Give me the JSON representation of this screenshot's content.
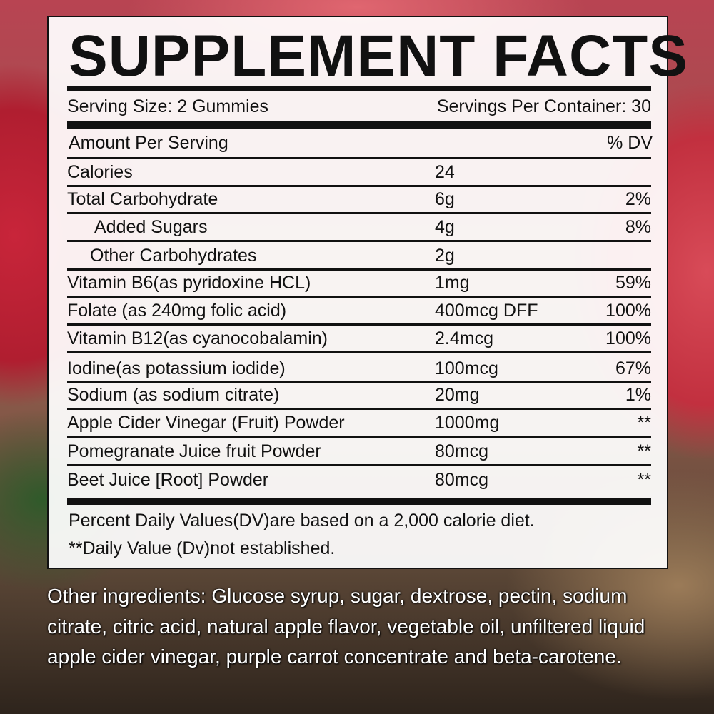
{
  "label": {
    "title": "SUPPLEMENT FACTS",
    "serving_size": "Serving Size: 2 Gummies",
    "servings_per_container": "Servings Per Container: 30",
    "amount_header": "Amount Per Serving",
    "dv_header": "% DV",
    "rows": [
      {
        "name": "Calories",
        "amount": "24",
        "dv": ""
      },
      {
        "name": "Total Carbohydrate",
        "amount": "6g",
        "dv": "2%"
      },
      {
        "name": "Added Sugars",
        "amount": "4g",
        "dv": "8%"
      },
      {
        "name": "Other Carbohydrates",
        "amount": "2g",
        "dv": ""
      },
      {
        "name": "Vitamin B6(as pyridoxine HCL)",
        "amount": "1mg",
        "dv": "59%"
      },
      {
        "name": "Folate (as 240mg folic acid)",
        "amount": "400mcg DFF",
        "dv": "100%"
      },
      {
        "name": "Vitamin B12(as cyanocobalamin)",
        "amount": "2.4mcg",
        "dv": "100%"
      },
      {
        "name": "Iodine(as potassium iodide)",
        "amount": "100mcg",
        "dv": "67%"
      },
      {
        "name": "Sodium (as sodium citrate)",
        "amount": "20mg",
        "dv": "1%"
      },
      {
        "name": "Apple Cider Vinegar (Fruit) Powder",
        "amount": "1000mg",
        "dv": "**"
      },
      {
        "name": "Pomegranate Juice  fruit Powder",
        "amount": "80mcg",
        "dv": "**"
      },
      {
        "name": "Beet Juice [Root] Powder",
        "amount": "80mcg",
        "dv": "**"
      }
    ],
    "footnote_1": "Percent Daily Values(DV)are based on a 2,000 calorie diet.",
    "footnote_2": "**Daily Value (Dv)not established."
  },
  "other_ingredients": "Other ingredients: Glucose syrup, sugar, dextrose, pectin, sodium citrate, citric acid, natural apple flavor, vegetable oil, unfiltered liquid apple cider vinegar, purple carrot concentrate and beta-carotene."
}
